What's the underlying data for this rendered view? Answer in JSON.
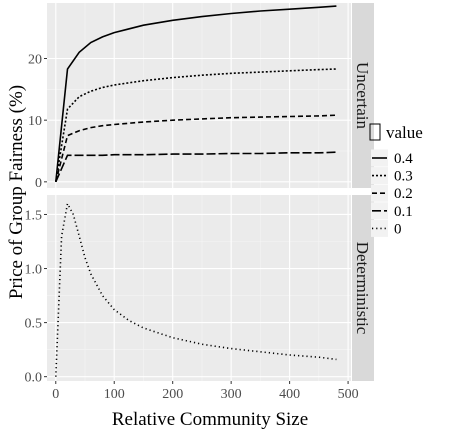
{
  "chart_data": {
    "type": "line",
    "xlabel": "Relative Community Size",
    "ylabel": "Price of Group Fairness (%)",
    "x_ticks": [
      0,
      100,
      200,
      300,
      400,
      500
    ],
    "xlim": [
      -15,
      505
    ],
    "grid": true,
    "legend": {
      "title": "value",
      "placement": "right",
      "entries": [
        {
          "label": "0.4",
          "linestyle": "solid"
        },
        {
          "label": "0.3",
          "linestyle": "dotted-dense"
        },
        {
          "label": "0.2",
          "linestyle": "dashed"
        },
        {
          "label": "0.1",
          "linestyle": "long-dashed"
        },
        {
          "label": "0",
          "linestyle": "dotted"
        }
      ]
    },
    "panels": [
      {
        "strip": "Uncertain",
        "ylim": [
          -1,
          29
        ],
        "y_ticks": [
          0,
          10,
          20
        ],
        "y_tick_labels": [
          "0",
          "10",
          "20"
        ],
        "series": [
          {
            "name": "0.4",
            "linestyle": "solid",
            "x": [
              0,
              20,
              40,
              60,
              80,
              100,
              150,
              200,
              250,
              300,
              350,
              400,
              450,
              480
            ],
            "y": [
              0,
              18.3,
              21.0,
              22.6,
              23.5,
              24.2,
              25.4,
              26.2,
              26.8,
              27.3,
              27.7,
              28.0,
              28.3,
              28.5
            ]
          },
          {
            "name": "0.3",
            "linestyle": "dotted-dense",
            "x": [
              0,
              20,
              40,
              60,
              80,
              100,
              150,
              200,
              250,
              300,
              350,
              400,
              450,
              480
            ],
            "y": [
              0,
              11.8,
              13.8,
              14.7,
              15.3,
              15.7,
              16.4,
              16.9,
              17.3,
              17.6,
              17.8,
              18.0,
              18.2,
              18.3
            ]
          },
          {
            "name": "0.2",
            "linestyle": "dashed",
            "x": [
              0,
              20,
              40,
              60,
              80,
              100,
              150,
              200,
              250,
              300,
              350,
              400,
              450,
              480
            ],
            "y": [
              0,
              7.5,
              8.3,
              8.8,
              9.1,
              9.3,
              9.7,
              10.0,
              10.2,
              10.4,
              10.5,
              10.6,
              10.7,
              10.8
            ]
          },
          {
            "name": "0.1",
            "linestyle": "long-dashed",
            "x": [
              0,
              20,
              40,
              60,
              80,
              100,
              150,
              200,
              250,
              300,
              350,
              400,
              450,
              480
            ],
            "y": [
              0,
              4.3,
              4.3,
              4.3,
              4.3,
              4.4,
              4.4,
              4.5,
              4.5,
              4.6,
              4.6,
              4.7,
              4.7,
              4.8
            ]
          }
        ]
      },
      {
        "strip": "Deterministic",
        "ylim": [
          -0.04,
          1.68
        ],
        "y_ticks": [
          0,
          0.5,
          1.0,
          1.5
        ],
        "y_tick_labels": [
          "0.0",
          "0.5",
          "1.0",
          "1.5"
        ],
        "series": [
          {
            "name": "0",
            "linestyle": "dotted",
            "x": [
              0,
              10,
              20,
              30,
              40,
              50,
              60,
              80,
              100,
              125,
              150,
              200,
              250,
              300,
              350,
              400,
              450,
              480
            ],
            "y": [
              0.0,
              1.3,
              1.6,
              1.5,
              1.3,
              1.1,
              0.95,
              0.75,
              0.62,
              0.52,
              0.45,
              0.36,
              0.3,
              0.26,
              0.23,
              0.2,
              0.18,
              0.16
            ]
          }
        ]
      }
    ]
  }
}
